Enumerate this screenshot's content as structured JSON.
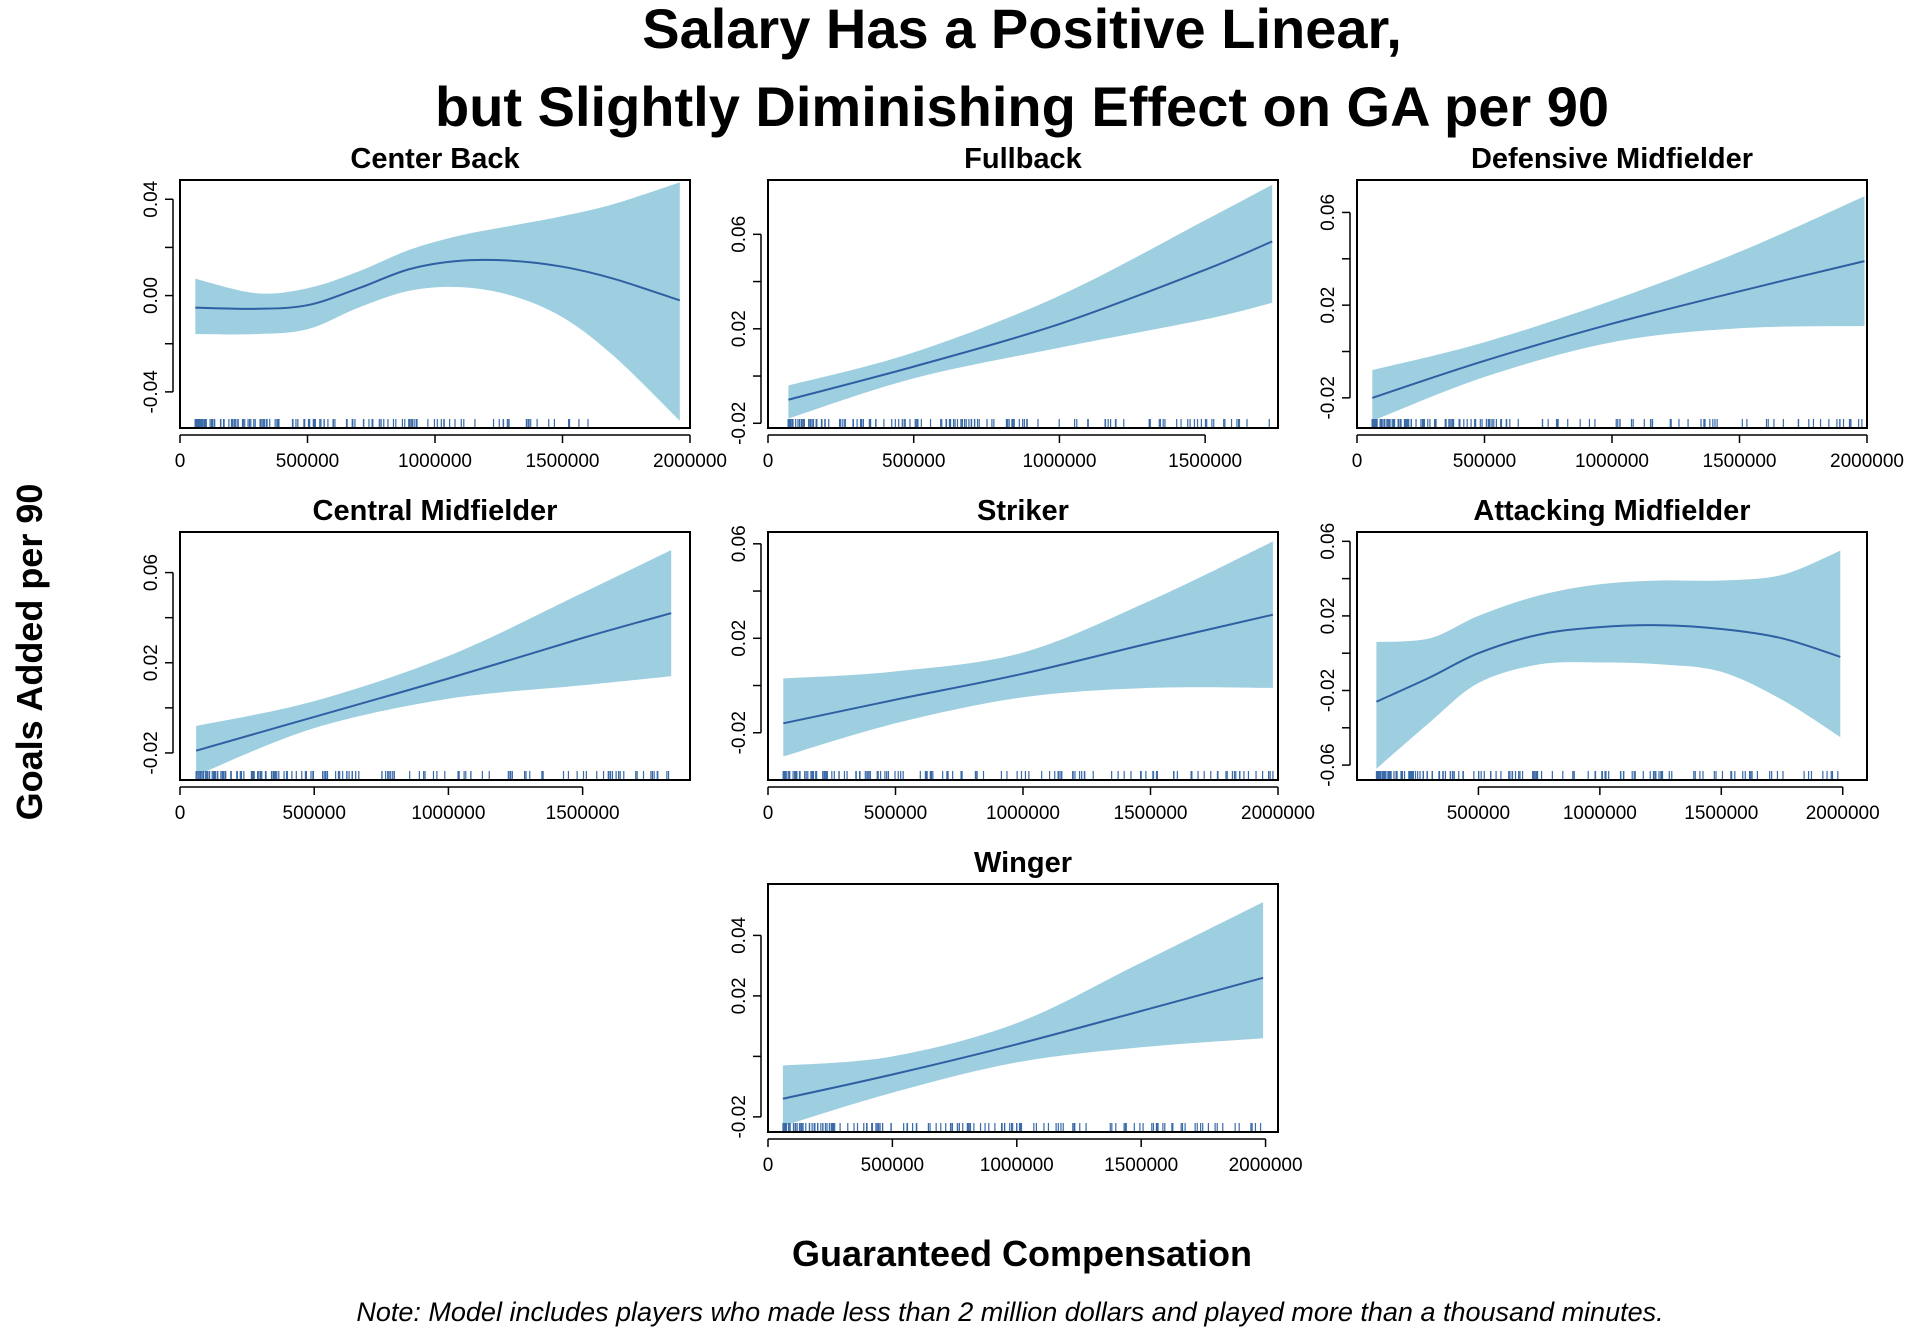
{
  "title_line1": "Salary Has a Positive Linear,",
  "title_line2": "but Slightly Diminishing Effect on GA per 90",
  "ylabel": "Goals Added per 90",
  "xlabel": "Guaranteed Compensation",
  "note": "Note: Model includes players who made less than 2 million dollars and played more than a thousand minutes.",
  "colors": {
    "band": "#9ecfe0",
    "line": "#2f5fa3",
    "rug": "#3a6aa8",
    "axis": "#000000"
  },
  "chart_data": [
    {
      "type": "line",
      "title": "Center Back",
      "xlim": [
        0,
        2000000
      ],
      "ylim": [
        -0.055,
        0.048
      ],
      "xticks": [
        0,
        500000,
        1000000,
        1500000,
        2000000
      ],
      "xtick_labels": [
        "0",
        "500000",
        "1000000",
        "1500000",
        "2000000"
      ],
      "yticks": [
        -0.04,
        0.0,
        0.04
      ],
      "ytick_labels": [
        "-0.04",
        "0.00",
        "0.04"
      ],
      "x": [
        60000,
        300000,
        500000,
        700000,
        900000,
        1100000,
        1300000,
        1500000,
        1700000,
        1960000
      ],
      "fit": [
        -0.005,
        -0.0055,
        -0.004,
        0.003,
        0.011,
        0.0145,
        0.0145,
        0.012,
        0.007,
        -0.002
      ],
      "lower": [
        -0.016,
        -0.016,
        -0.014,
        -0.005,
        0.002,
        0.0035,
        0.0,
        -0.009,
        -0.025,
        -0.052
      ],
      "upper": [
        0.007,
        0.001,
        0.003,
        0.01,
        0.019,
        0.025,
        0.029,
        0.033,
        0.038,
        0.047
      ],
      "rug_range": [
        60000,
        1600000
      ]
    },
    {
      "type": "line",
      "title": "Fullback",
      "xlim": [
        0,
        1750000
      ],
      "ylim": [
        -0.022,
        0.083
      ],
      "xticks": [
        0,
        500000,
        1000000,
        1500000
      ],
      "xtick_labels": [
        "0",
        "500000",
        "1000000",
        "1500000"
      ],
      "yticks": [
        -0.02,
        0.02,
        0.06
      ],
      "ytick_labels": [
        "-0.02",
        "0.02",
        "0.06"
      ],
      "x": [
        70000,
        500000,
        1000000,
        1500000,
        1730000
      ],
      "fit": [
        -0.01,
        0.004,
        0.022,
        0.045,
        0.057
      ],
      "lower": [
        -0.018,
        -0.001,
        0.012,
        0.024,
        0.031
      ],
      "upper": [
        -0.004,
        0.01,
        0.034,
        0.066,
        0.081
      ],
      "rug_range": [
        70000,
        1720000
      ]
    },
    {
      "type": "line",
      "title": "Defensive Midfielder",
      "xlim": [
        0,
        2000000
      ],
      "ylim": [
        -0.033,
        0.074
      ],
      "xticks": [
        0,
        500000,
        1000000,
        1500000,
        2000000
      ],
      "xtick_labels": [
        "0",
        "500000",
        "1000000",
        "1500000",
        "2000000"
      ],
      "yticks": [
        -0.02,
        0.02,
        0.06
      ],
      "ytick_labels": [
        "-0.02",
        "0.02",
        "0.06"
      ],
      "x": [
        60000,
        500000,
        1000000,
        1500000,
        1990000
      ],
      "fit": [
        -0.02,
        -0.004,
        0.012,
        0.026,
        0.039
      ],
      "lower": [
        -0.03,
        -0.011,
        0.004,
        0.01,
        0.011
      ],
      "upper": [
        -0.008,
        0.004,
        0.022,
        0.043,
        0.067
      ],
      "rug_range": [
        60000,
        1980000
      ]
    },
    {
      "type": "line",
      "title": "Central Midfielder",
      "xlim": [
        0,
        1900000
      ],
      "ylim": [
        -0.032,
        0.078
      ],
      "xticks": [
        0,
        500000,
        1000000,
        1500000
      ],
      "xtick_labels": [
        "0",
        "500000",
        "1000000",
        "1500000"
      ],
      "yticks": [
        -0.02,
        0.02,
        0.06
      ],
      "ytick_labels": [
        "-0.02",
        "0.02",
        "0.06"
      ],
      "x": [
        60000,
        500000,
        1000000,
        1500000,
        1830000
      ],
      "fit": [
        -0.019,
        -0.004,
        0.013,
        0.031,
        0.042
      ],
      "lower": [
        -0.03,
        -0.009,
        0.004,
        0.01,
        0.014
      ],
      "upper": [
        -0.008,
        0.003,
        0.023,
        0.051,
        0.07
      ],
      "rug_range": [
        60000,
        1820000
      ]
    },
    {
      "type": "line",
      "title": "Striker",
      "xlim": [
        0,
        2000000
      ],
      "ylim": [
        -0.04,
        0.065
      ],
      "xticks": [
        0,
        500000,
        1000000,
        1500000,
        2000000
      ],
      "xtick_labels": [
        "0",
        "500000",
        "1000000",
        "1500000",
        "2000000"
      ],
      "yticks": [
        -0.02,
        0.02,
        0.06
      ],
      "ytick_labels": [
        "-0.02",
        "0.02",
        "0.06"
      ],
      "x": [
        60000,
        500000,
        1000000,
        1500000,
        1980000
      ],
      "fit": [
        -0.016,
        -0.006,
        0.005,
        0.018,
        0.03
      ],
      "lower": [
        -0.03,
        -0.016,
        -0.005,
        -0.001,
        -0.001
      ],
      "upper": [
        0.003,
        0.006,
        0.014,
        0.036,
        0.061
      ],
      "rug_range": [
        60000,
        1980000
      ]
    },
    {
      "type": "line",
      "title": "Attacking Midfielder",
      "xlim": [
        0,
        2100000
      ],
      "ylim": [
        -0.068,
        0.065
      ],
      "xticks": [
        500000,
        1000000,
        1500000,
        2000000
      ],
      "xtick_labels": [
        "500000",
        "1000000",
        "1500000",
        "2000000"
      ],
      "yticks": [
        -0.06,
        -0.02,
        0.02,
        0.06
      ],
      "ytick_labels": [
        "-0.06",
        "-0.02",
        "0.02",
        "0.06"
      ],
      "x": [
        80000,
        300000,
        500000,
        750000,
        1000000,
        1250000,
        1500000,
        1750000,
        1990000
      ],
      "fit": [
        -0.026,
        -0.013,
        0.0,
        0.01,
        0.014,
        0.015,
        0.013,
        0.008,
        -0.002
      ],
      "lower": [
        -0.062,
        -0.037,
        -0.016,
        -0.006,
        -0.005,
        -0.006,
        -0.01,
        -0.025,
        -0.045
      ],
      "upper": [
        0.006,
        0.008,
        0.02,
        0.031,
        0.037,
        0.039,
        0.039,
        0.042,
        0.055
      ],
      "rug_range": [
        80000,
        1980000
      ]
    },
    {
      "type": "line",
      "title": "Winger",
      "xlim": [
        0,
        2050000
      ],
      "ylim": [
        -0.025,
        0.057
      ],
      "xticks": [
        0,
        500000,
        1000000,
        1500000,
        2000000
      ],
      "xtick_labels": [
        "0",
        "500000",
        "1000000",
        "1500000",
        "2000000"
      ],
      "yticks": [
        -0.02,
        0.02,
        0.04
      ],
      "ytick_labels": [
        "-0.02",
        "0.02",
        "0.04"
      ],
      "x": [
        60000,
        500000,
        1000000,
        1500000,
        1990000
      ],
      "fit": [
        -0.014,
        -0.006,
        0.004,
        0.015,
        0.026
      ],
      "lower": [
        -0.023,
        -0.012,
        -0.002,
        0.003,
        0.006
      ],
      "upper": [
        -0.003,
        0.0,
        0.011,
        0.031,
        0.051
      ],
      "rug_range": [
        60000,
        1980000
      ]
    }
  ]
}
